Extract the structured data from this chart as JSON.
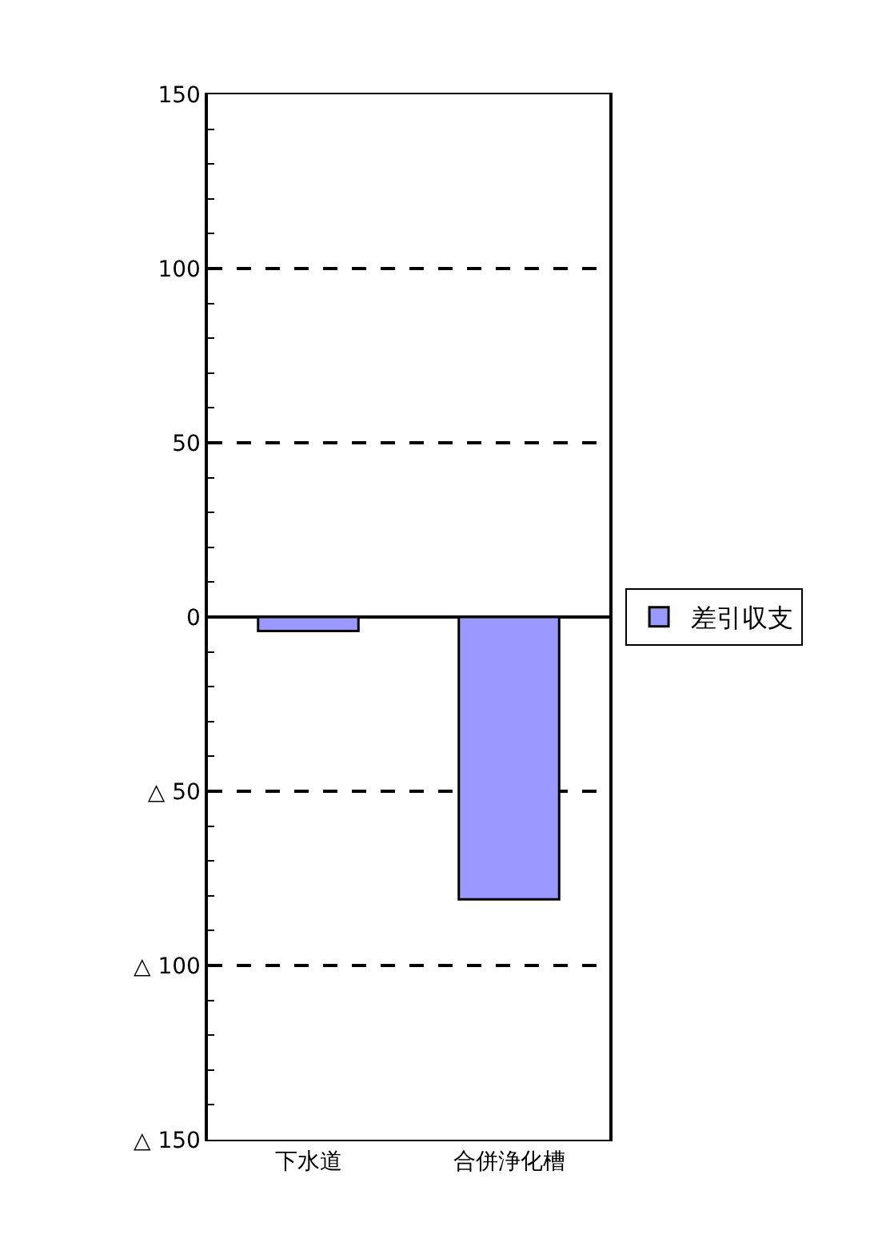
{
  "chart_data": {
    "type": "bar",
    "categories": [
      "下水道",
      "合併浄化槽"
    ],
    "series": [
      {
        "name": "差引収支",
        "color": "#9999ff",
        "values": [
          -4,
          -81
        ]
      }
    ],
    "ylim": [
      -150,
      150
    ],
    "yticks": [
      {
        "value": -150,
        "label": "△ 150"
      },
      {
        "value": -100,
        "label": "△ 100"
      },
      {
        "value": -50,
        "label": "△ 50"
      },
      0,
      50,
      100,
      150
    ],
    "grid": "y",
    "line_style": "dashed",
    "legend": "right"
  }
}
